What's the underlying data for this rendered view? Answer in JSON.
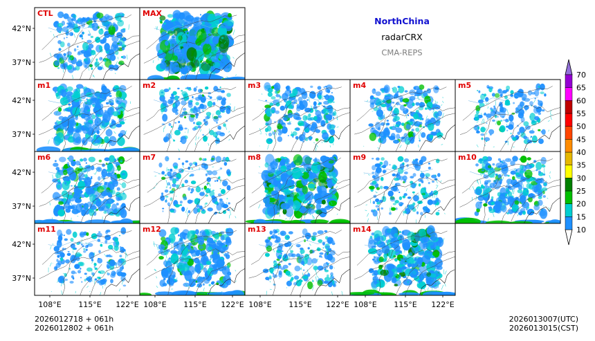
{
  "chart_data": {
    "type": "heatmap",
    "header": {
      "region": "NorthChina",
      "variable": "radarCRX",
      "system": "CMA-REPS"
    },
    "panels": [
      {
        "label": "CTL",
        "row": 0,
        "col": 0,
        "intensity": 0.45
      },
      {
        "label": "MAX",
        "row": 0,
        "col": 1,
        "intensity": 1.0
      },
      {
        "label": "m1",
        "row": 1,
        "col": 0,
        "intensity": 0.6
      },
      {
        "label": "m2",
        "row": 1,
        "col": 1,
        "intensity": 0.3
      },
      {
        "label": "m3",
        "row": 1,
        "col": 2,
        "intensity": 0.45
      },
      {
        "label": "m4",
        "row": 1,
        "col": 3,
        "intensity": 0.45
      },
      {
        "label": "m5",
        "row": 1,
        "col": 4,
        "intensity": 0.3
      },
      {
        "label": "m6",
        "row": 2,
        "col": 0,
        "intensity": 0.55
      },
      {
        "label": "m7",
        "row": 2,
        "col": 1,
        "intensity": 0.25
      },
      {
        "label": "m8",
        "row": 2,
        "col": 2,
        "intensity": 0.8
      },
      {
        "label": "m9",
        "row": 2,
        "col": 3,
        "intensity": 0.3
      },
      {
        "label": "m10",
        "row": 2,
        "col": 4,
        "intensity": 0.55
      },
      {
        "label": "m11",
        "row": 3,
        "col": 0,
        "intensity": 0.3
      },
      {
        "label": "m12",
        "row": 3,
        "col": 1,
        "intensity": 0.6
      },
      {
        "label": "m13",
        "row": 3,
        "col": 2,
        "intensity": 0.35
      },
      {
        "label": "m14",
        "row": 3,
        "col": 3,
        "intensity": 0.75
      }
    ],
    "x_ticks": [
      "108°E",
      "115°E",
      "122°E"
    ],
    "y_ticks": [
      "42°N",
      "37°N"
    ],
    "colorbar": {
      "levels": [
        10,
        15,
        20,
        25,
        30,
        35,
        40,
        45,
        50,
        55,
        60,
        65,
        70
      ],
      "colors": [
        "#1e90ff",
        "#00ced1",
        "#00c000",
        "#008000",
        "#ffff00",
        "#e6b800",
        "#ff8c00",
        "#ff4500",
        "#ff0000",
        "#c00000",
        "#ff00ff",
        "#9400d3"
      ],
      "over_color": "#9370db",
      "under_color": "#ffffff"
    },
    "footer": {
      "init_line1": "2026012718  +  061h",
      "init_line2": "2026012802  +  061h",
      "valid_utc": "2026013007(UTC)",
      "valid_cst": "2026013015(CST)"
    }
  }
}
